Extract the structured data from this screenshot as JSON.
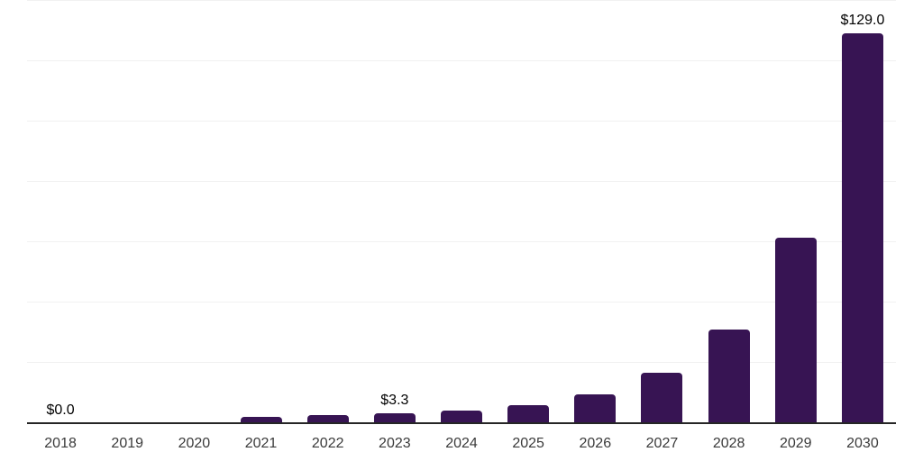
{
  "chart_data": {
    "type": "bar",
    "title": "",
    "xlabel": "",
    "ylabel": "",
    "categories": [
      "2018",
      "2019",
      "2020",
      "2021",
      "2022",
      "2023",
      "2024",
      "2025",
      "2026",
      "2027",
      "2028",
      "2029",
      "2030"
    ],
    "values": [
      0.0,
      0.0,
      0.0,
      2.0,
      2.8,
      3.3,
      4.2,
      5.9,
      9.5,
      16.7,
      31.0,
      61.5,
      129.0
    ],
    "bar_labels": [
      "$0.0",
      "",
      "",
      "",
      "",
      "$3.3",
      "",
      "",
      "",
      "",
      "",
      "",
      "$129.0"
    ],
    "ylim": [
      0,
      140
    ],
    "gridline_step": 20,
    "grid": "horizontal-only",
    "y_axis_tick_labels_visible": false,
    "legend_position": "none",
    "colors": {
      "bar": "#371453",
      "axis_line": "#262626",
      "gridline": "#f1f1f1",
      "bar_label_text": "#000000",
      "tick_label_text": "#3a3a3a",
      "background": "#ffffff"
    }
  }
}
